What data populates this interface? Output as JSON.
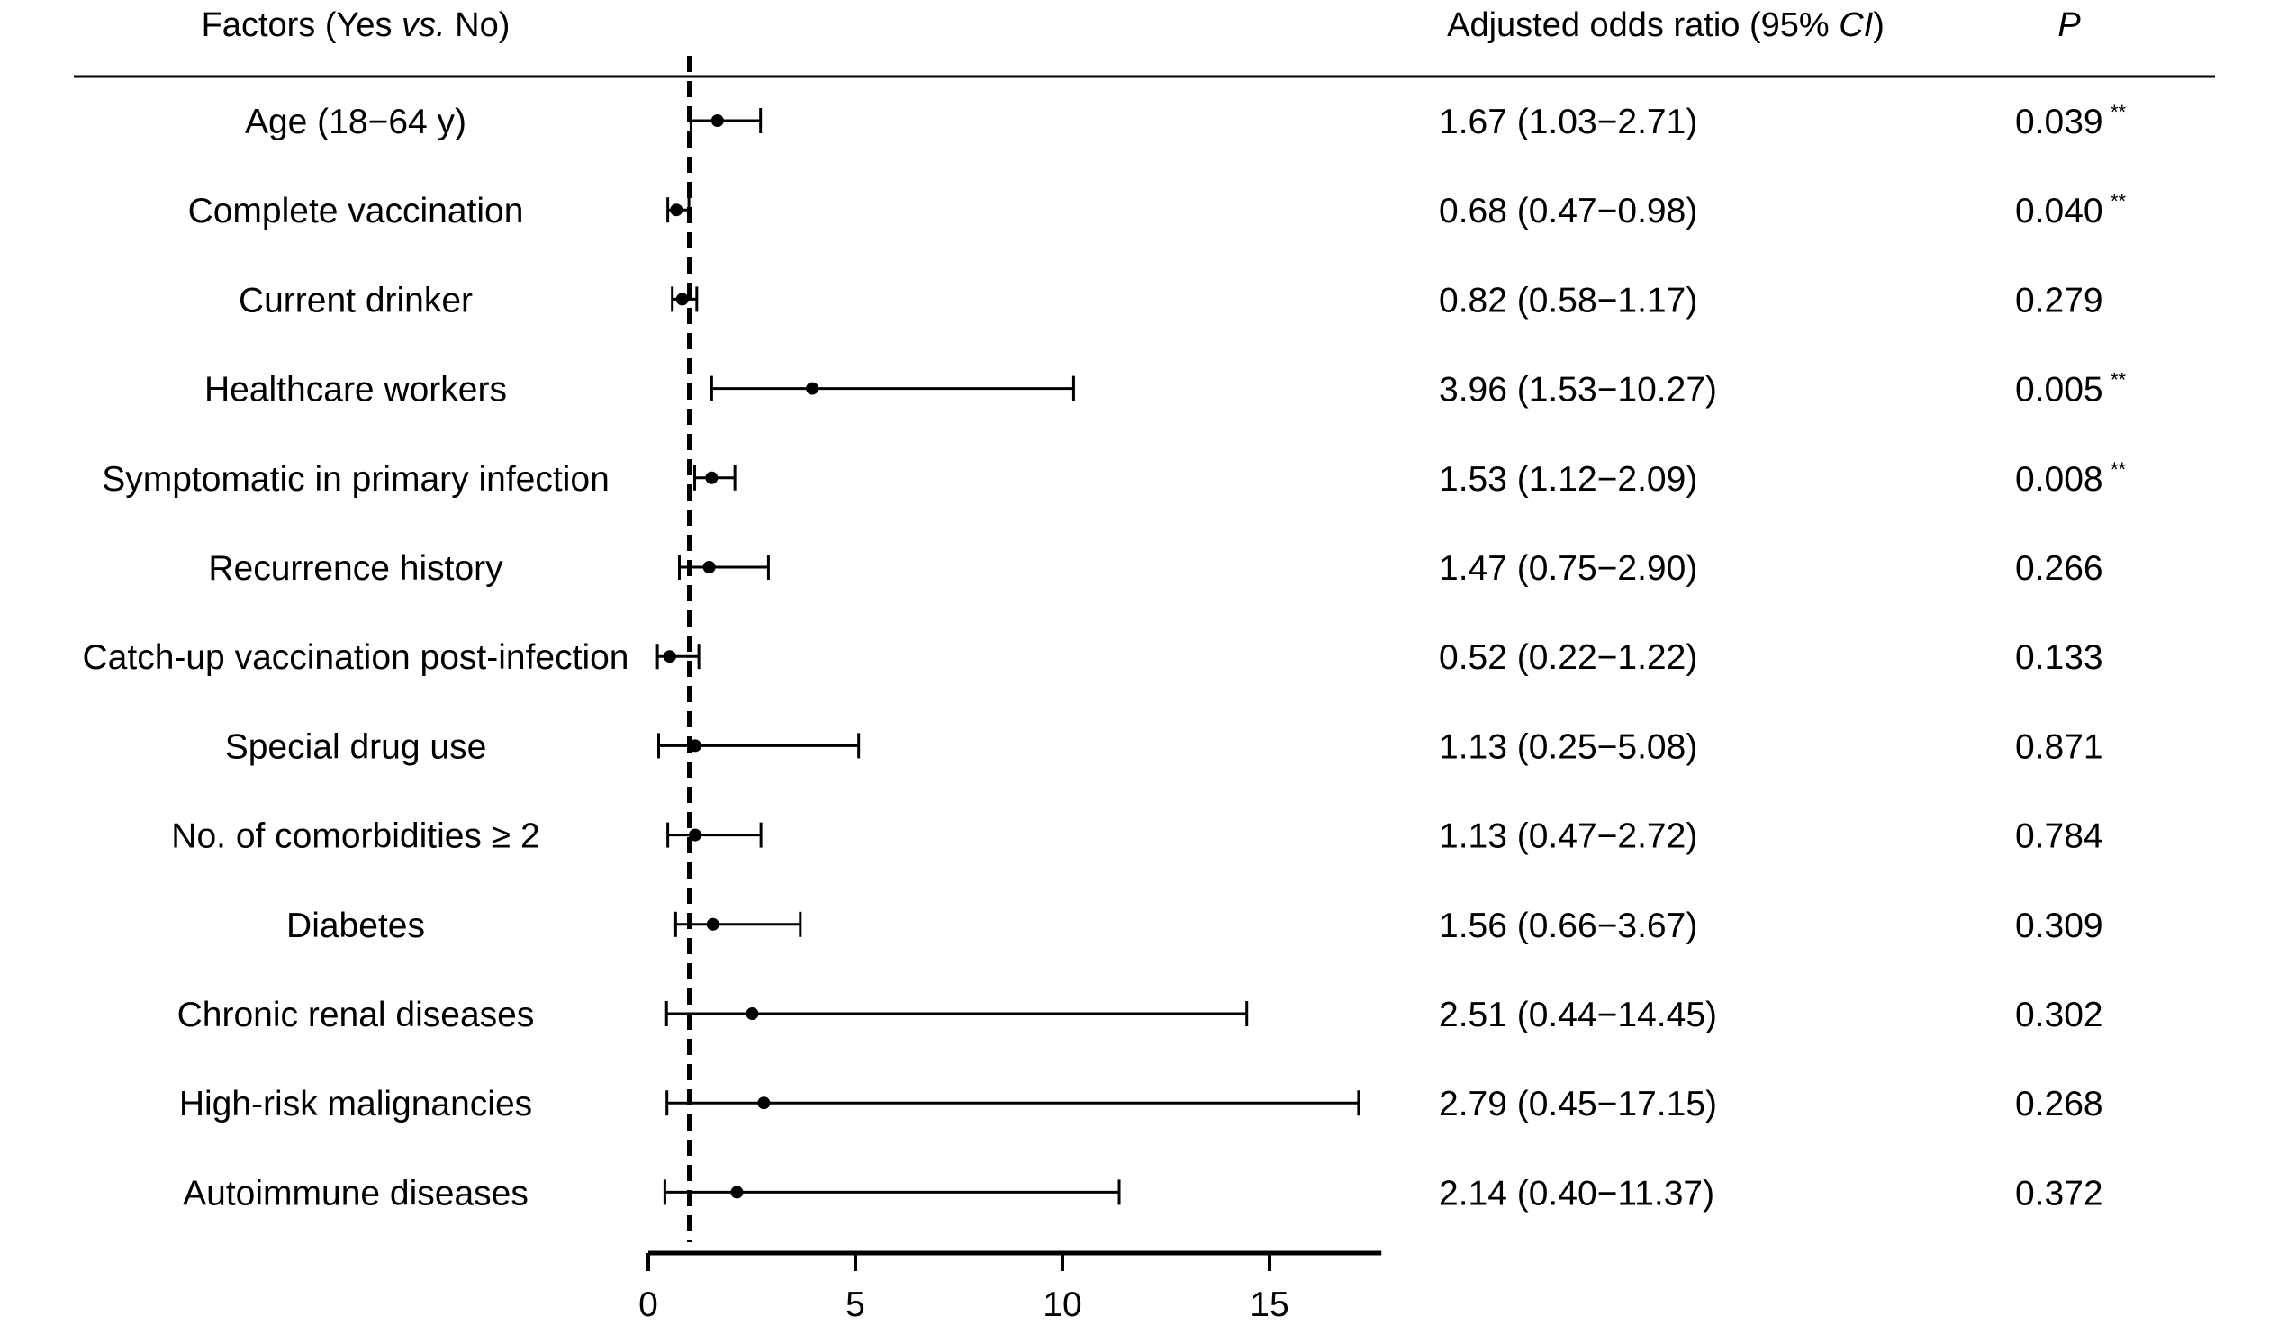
{
  "header": {
    "factors_prefix": "Factors (Yes ",
    "factors_vs": "vs.",
    "factors_suffix": " No)",
    "or_prefix": "Adjusted odds ratio (95% ",
    "or_ci": "CI",
    "or_suffix": ")",
    "p": "P"
  },
  "chart_data": {
    "type": "forest",
    "xlim": [
      0,
      17.7
    ],
    "xticks": [
      0,
      5,
      10,
      15
    ],
    "reference_line": 1,
    "rows": [
      {
        "factor": "Age (18−64 y)",
        "or": 1.67,
        "lo": 1.03,
        "hi": 2.71,
        "or_text": "1.67 (1.03−2.71)",
        "p": "0.039",
        "sig": "**"
      },
      {
        "factor": "Complete vaccination",
        "or": 0.68,
        "lo": 0.47,
        "hi": 0.98,
        "or_text": "0.68 (0.47−0.98)",
        "p": "0.040",
        "sig": "**"
      },
      {
        "factor": "Current drinker",
        "or": 0.82,
        "lo": 0.58,
        "hi": 1.17,
        "or_text": "0.82 (0.58−1.17)",
        "p": "0.279",
        "sig": ""
      },
      {
        "factor": "Healthcare workers",
        "or": 3.96,
        "lo": 1.53,
        "hi": 10.27,
        "or_text": "3.96 (1.53−10.27)",
        "p": "0.005",
        "sig": "**"
      },
      {
        "factor": "Symptomatic in primary infection",
        "or": 1.53,
        "lo": 1.12,
        "hi": 2.09,
        "or_text": "1.53 (1.12−2.09)",
        "p": "0.008",
        "sig": "**"
      },
      {
        "factor": "Recurrence history",
        "or": 1.47,
        "lo": 0.75,
        "hi": 2.9,
        "or_text": "1.47 (0.75−2.90)",
        "p": "0.266",
        "sig": ""
      },
      {
        "factor": "Catch-up vaccination post-infection",
        "or": 0.52,
        "lo": 0.22,
        "hi": 1.22,
        "or_text": "0.52 (0.22−1.22)",
        "p": "0.133",
        "sig": ""
      },
      {
        "factor": "Special drug use",
        "or": 1.13,
        "lo": 0.25,
        "hi": 5.08,
        "or_text": "1.13 (0.25−5.08)",
        "p": "0.871",
        "sig": ""
      },
      {
        "factor": "No. of comorbidities ≥ 2",
        "or": 1.13,
        "lo": 0.47,
        "hi": 2.72,
        "or_text": "1.13 (0.47−2.72)",
        "p": "0.784",
        "sig": ""
      },
      {
        "factor": "Diabetes",
        "or": 1.56,
        "lo": 0.66,
        "hi": 3.67,
        "or_text": "1.56 (0.66−3.67)",
        "p": "0.309",
        "sig": ""
      },
      {
        "factor": "Chronic renal diseases",
        "or": 2.51,
        "lo": 0.44,
        "hi": 14.45,
        "or_text": "2.51 (0.44−14.45)",
        "p": "0.302",
        "sig": ""
      },
      {
        "factor": "High-risk malignancies",
        "or": 2.79,
        "lo": 0.45,
        "hi": 17.15,
        "or_text": "2.79 (0.45−17.15)",
        "p": "0.268",
        "sig": ""
      },
      {
        "factor": "Autoimmune diseases",
        "or": 2.14,
        "lo": 0.4,
        "hi": 11.37,
        "or_text": "2.14 (0.40−11.37)",
        "p": "0.372",
        "sig": ""
      }
    ]
  }
}
